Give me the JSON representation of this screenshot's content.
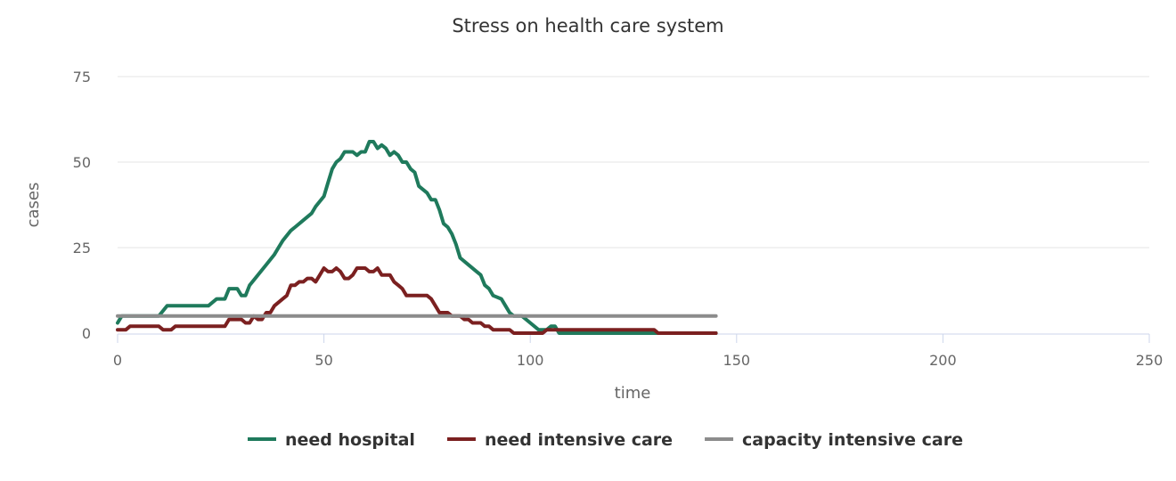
{
  "chart_data": {
    "type": "line",
    "title": "Stress on health care system",
    "xlabel": "time",
    "ylabel": "cases",
    "xlim": [
      0,
      250
    ],
    "ylim": [
      0,
      75
    ],
    "xticks": [
      0,
      50,
      100,
      150,
      200,
      250
    ],
    "yticks": [
      0,
      25,
      50,
      75
    ],
    "grid": "horizontal",
    "legend": "bottom-center",
    "series": [
      {
        "name": "need hospital",
        "color": "#1f7a5c",
        "points": [
          [
            0,
            3
          ],
          [
            1,
            5
          ],
          [
            5,
            5
          ],
          [
            10,
            5
          ],
          [
            12,
            8
          ],
          [
            16,
            8
          ],
          [
            20,
            8
          ],
          [
            22,
            8
          ],
          [
            24,
            10
          ],
          [
            26,
            10
          ],
          [
            27,
            13
          ],
          [
            29,
            13
          ],
          [
            30,
            11
          ],
          [
            31,
            11
          ],
          [
            32,
            14
          ],
          [
            34,
            17
          ],
          [
            36,
            20
          ],
          [
            38,
            23
          ],
          [
            39,
            25
          ],
          [
            40,
            27
          ],
          [
            42,
            30
          ],
          [
            43,
            31
          ],
          [
            45,
            33
          ],
          [
            47,
            35
          ],
          [
            48,
            37
          ],
          [
            50,
            40
          ],
          [
            51,
            44
          ],
          [
            52,
            48
          ],
          [
            53,
            50
          ],
          [
            54,
            51
          ],
          [
            55,
            53
          ],
          [
            57,
            53
          ],
          [
            58,
            52
          ],
          [
            59,
            53
          ],
          [
            60,
            53
          ],
          [
            61,
            56
          ],
          [
            62,
            56
          ],
          [
            63,
            54
          ],
          [
            64,
            55
          ],
          [
            65,
            54
          ],
          [
            66,
            52
          ],
          [
            67,
            53
          ],
          [
            68,
            52
          ],
          [
            69,
            50
          ],
          [
            70,
            50
          ],
          [
            71,
            48
          ],
          [
            72,
            47
          ],
          [
            73,
            43
          ],
          [
            75,
            41
          ],
          [
            76,
            39
          ],
          [
            77,
            39
          ],
          [
            78,
            36
          ],
          [
            79,
            32
          ],
          [
            80,
            31
          ],
          [
            81,
            29
          ],
          [
            82,
            26
          ],
          [
            83,
            22
          ],
          [
            85,
            20
          ],
          [
            87,
            18
          ],
          [
            88,
            17
          ],
          [
            89,
            14
          ],
          [
            90,
            13
          ],
          [
            91,
            11
          ],
          [
            93,
            10
          ],
          [
            94,
            8
          ],
          [
            95,
            6
          ],
          [
            96,
            5
          ],
          [
            98,
            5
          ],
          [
            100,
            3
          ],
          [
            102,
            1
          ],
          [
            104,
            1
          ],
          [
            105,
            2
          ],
          [
            106,
            2
          ],
          [
            107,
            0
          ],
          [
            110,
            0
          ],
          [
            120,
            0
          ],
          [
            130,
            0
          ],
          [
            140,
            0
          ],
          [
            145,
            0
          ]
        ]
      },
      {
        "name": "need intensive care",
        "color": "#7b2020",
        "points": [
          [
            0,
            1
          ],
          [
            2,
            1
          ],
          [
            3,
            2
          ],
          [
            10,
            2
          ],
          [
            11,
            1
          ],
          [
            13,
            1
          ],
          [
            14,
            2
          ],
          [
            20,
            2
          ],
          [
            25,
            2
          ],
          [
            26,
            2
          ],
          [
            27,
            4
          ],
          [
            30,
            4
          ],
          [
            31,
            3
          ],
          [
            32,
            3
          ],
          [
            33,
            5
          ],
          [
            34,
            4
          ],
          [
            35,
            4
          ],
          [
            36,
            6
          ],
          [
            37,
            6
          ],
          [
            38,
            8
          ],
          [
            40,
            10
          ],
          [
            41,
            11
          ],
          [
            42,
            14
          ],
          [
            43,
            14
          ],
          [
            44,
            15
          ],
          [
            45,
            15
          ],
          [
            46,
            16
          ],
          [
            47,
            16
          ],
          [
            48,
            15
          ],
          [
            49,
            17
          ],
          [
            50,
            19
          ],
          [
            51,
            18
          ],
          [
            52,
            18
          ],
          [
            53,
            19
          ],
          [
            54,
            18
          ],
          [
            55,
            16
          ],
          [
            56,
            16
          ],
          [
            57,
            17
          ],
          [
            58,
            19
          ],
          [
            59,
            19
          ],
          [
            60,
            19
          ],
          [
            61,
            18
          ],
          [
            62,
            18
          ],
          [
            63,
            19
          ],
          [
            64,
            17
          ],
          [
            65,
            17
          ],
          [
            66,
            17
          ],
          [
            67,
            15
          ],
          [
            68,
            14
          ],
          [
            69,
            13
          ],
          [
            70,
            11
          ],
          [
            72,
            11
          ],
          [
            74,
            11
          ],
          [
            75,
            11
          ],
          [
            76,
            10
          ],
          [
            77,
            8
          ],
          [
            78,
            6
          ],
          [
            80,
            6
          ],
          [
            81,
            5
          ],
          [
            83,
            5
          ],
          [
            84,
            4
          ],
          [
            85,
            4
          ],
          [
            86,
            3
          ],
          [
            88,
            3
          ],
          [
            89,
            2
          ],
          [
            90,
            2
          ],
          [
            91,
            1
          ],
          [
            93,
            1
          ],
          [
            95,
            1
          ],
          [
            96,
            0
          ],
          [
            100,
            0
          ],
          [
            103,
            0
          ],
          [
            104,
            1
          ],
          [
            110,
            1
          ],
          [
            120,
            1
          ],
          [
            130,
            1
          ],
          [
            131,
            0
          ],
          [
            140,
            0
          ],
          [
            145,
            0
          ]
        ]
      },
      {
        "name": "capacity intensive care",
        "color": "#8c8c8c",
        "points": [
          [
            0,
            5
          ],
          [
            145,
            5
          ]
        ]
      }
    ]
  }
}
